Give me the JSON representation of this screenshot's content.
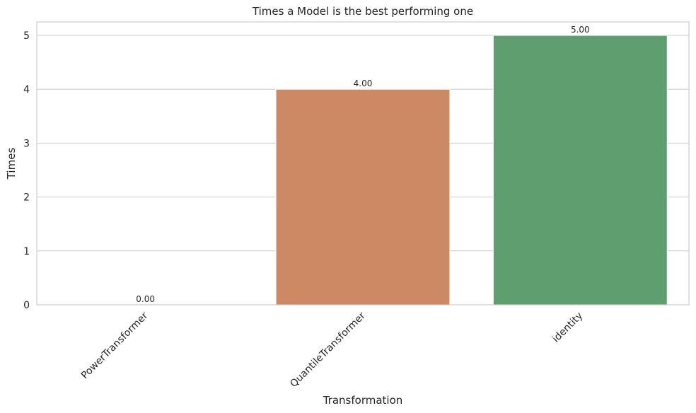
{
  "chart_data": {
    "type": "bar",
    "title": "Times a Model is the best performing one",
    "xlabel": "Transformation",
    "ylabel": "Times",
    "categories": [
      "PowerTransformer",
      "QuantileTransformer",
      "identity"
    ],
    "values": [
      0,
      4,
      5
    ],
    "value_labels": [
      "0.00",
      "4.00",
      "5.00"
    ],
    "colors": [
      "#4c72b0",
      "#cc8963",
      "#5f9e6e"
    ],
    "ylim": [
      0,
      5.25
    ],
    "yticks": [
      0,
      1,
      2,
      3,
      4,
      5
    ],
    "ytick_labels": [
      "0",
      "1",
      "2",
      "3",
      "4",
      "5"
    ],
    "grid": "horizontal",
    "xtick_rotation": "45 degrees"
  }
}
